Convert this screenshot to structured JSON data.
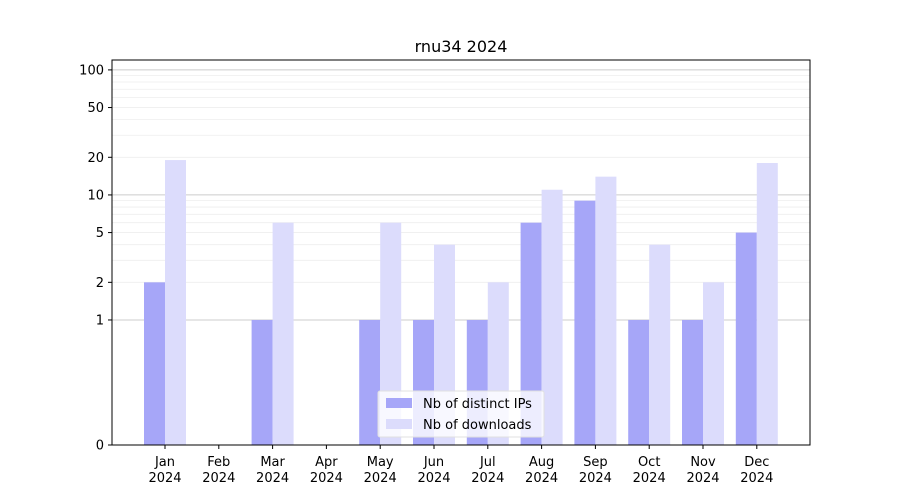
{
  "chart_data": {
    "type": "bar",
    "title": "rnu34 2024",
    "xlabel": "",
    "ylabel": "",
    "y_scale": "symlog",
    "ylim": [
      0,
      120
    ],
    "y_ticks": [
      0,
      1,
      2,
      5,
      10,
      20,
      50,
      100
    ],
    "categories": [
      {
        "month": "Jan",
        "year": "2024"
      },
      {
        "month": "Feb",
        "year": "2024"
      },
      {
        "month": "Mar",
        "year": "2024"
      },
      {
        "month": "Apr",
        "year": "2024"
      },
      {
        "month": "May",
        "year": "2024"
      },
      {
        "month": "Jun",
        "year": "2024"
      },
      {
        "month": "Jul",
        "year": "2024"
      },
      {
        "month": "Aug",
        "year": "2024"
      },
      {
        "month": "Sep",
        "year": "2024"
      },
      {
        "month": "Oct",
        "year": "2024"
      },
      {
        "month": "Nov",
        "year": "2024"
      },
      {
        "month": "Dec",
        "year": "2024"
      }
    ],
    "series": [
      {
        "name": "Nb of distinct IPs",
        "color": "#a6a6f8",
        "values": [
          2,
          0,
          1,
          0,
          1,
          1,
          1,
          6,
          9,
          1,
          1,
          5
        ]
      },
      {
        "name": "Nb of downloads",
        "color": "#dcdcfc",
        "values": [
          19,
          0,
          6,
          0,
          6,
          4,
          2,
          11,
          14,
          4,
          2,
          18
        ]
      }
    ],
    "legend_position": "bottom-center",
    "grid": true
  }
}
